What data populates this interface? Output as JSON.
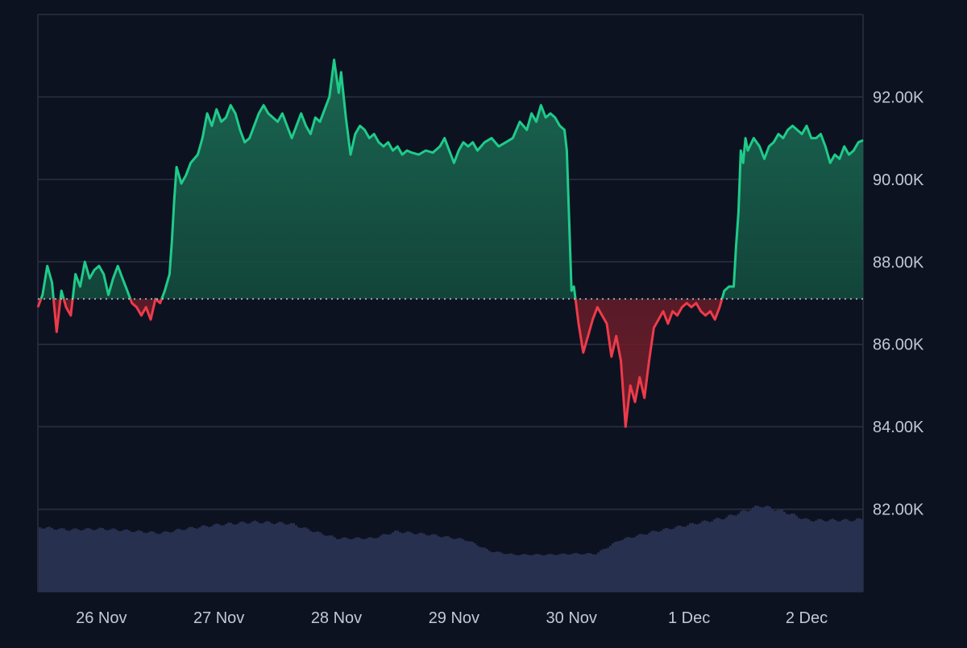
{
  "colors": {
    "background": "#0d1221",
    "grid": "#2b3142",
    "axis_text": "#c3c8d4",
    "up_line": "#1fcb8a",
    "down_line": "#ee3b4a",
    "up_fill": "#1b6b54",
    "down_fill": "#7a1f2c",
    "volume": "#28304f",
    "baseline": "#c9ced8"
  },
  "chart_data": {
    "type": "area",
    "baseline_value": 87100,
    "ylim": [
      80000,
      94000
    ],
    "y_ticks": [
      {
        "value": 82000,
        "label": "82.00K"
      },
      {
        "value": 84000,
        "label": "84.00K"
      },
      {
        "value": 86000,
        "label": "86.00K"
      },
      {
        "value": 88000,
        "label": "88.00K"
      },
      {
        "value": 90000,
        "label": "90.00K"
      },
      {
        "value": 92000,
        "label": "92.00K"
      }
    ],
    "x_ticks": [
      {
        "day": 0,
        "label": "26 Nov"
      },
      {
        "day": 1,
        "label": "27 Nov"
      },
      {
        "day": 2,
        "label": "28 Nov"
      },
      {
        "day": 3,
        "label": "29 Nov"
      },
      {
        "day": 4,
        "label": "30 Nov"
      },
      {
        "day": 5,
        "label": "1 Dec"
      },
      {
        "day": 6,
        "label": "2 Dec"
      }
    ],
    "xlim": [
      -0.54,
      6.48
    ],
    "price": [
      [
        -0.54,
        86900
      ],
      [
        -0.5,
        87200
      ],
      [
        -0.46,
        87900
      ],
      [
        -0.42,
        87500
      ],
      [
        -0.38,
        86300
      ],
      [
        -0.34,
        87300
      ],
      [
        -0.3,
        86900
      ],
      [
        -0.26,
        86700
      ],
      [
        -0.22,
        87700
      ],
      [
        -0.18,
        87400
      ],
      [
        -0.14,
        88000
      ],
      [
        -0.1,
        87600
      ],
      [
        -0.06,
        87800
      ],
      [
        -0.02,
        87900
      ],
      [
        0.02,
        87700
      ],
      [
        0.06,
        87200
      ],
      [
        0.1,
        87600
      ],
      [
        0.14,
        87900
      ],
      [
        0.18,
        87600
      ],
      [
        0.22,
        87300
      ],
      [
        0.26,
        87000
      ],
      [
        0.3,
        86900
      ],
      [
        0.34,
        86700
      ],
      [
        0.38,
        86900
      ],
      [
        0.42,
        86600
      ],
      [
        0.46,
        87100
      ],
      [
        0.5,
        87000
      ],
      [
        0.54,
        87300
      ],
      [
        0.58,
        87700
      ],
      [
        0.6,
        88500
      ],
      [
        0.62,
        89500
      ],
      [
        0.64,
        90300
      ],
      [
        0.68,
        89900
      ],
      [
        0.72,
        90100
      ],
      [
        0.76,
        90400
      ],
      [
        0.82,
        90600
      ],
      [
        0.86,
        91000
      ],
      [
        0.9,
        91600
      ],
      [
        0.94,
        91300
      ],
      [
        0.98,
        91700
      ],
      [
        1.02,
        91400
      ],
      [
        1.06,
        91500
      ],
      [
        1.1,
        91800
      ],
      [
        1.14,
        91600
      ],
      [
        1.18,
        91200
      ],
      [
        1.22,
        90900
      ],
      [
        1.26,
        91000
      ],
      [
        1.3,
        91300
      ],
      [
        1.34,
        91600
      ],
      [
        1.38,
        91800
      ],
      [
        1.42,
        91600
      ],
      [
        1.46,
        91500
      ],
      [
        1.5,
        91400
      ],
      [
        1.54,
        91600
      ],
      [
        1.58,
        91300
      ],
      [
        1.62,
        91000
      ],
      [
        1.66,
        91300
      ],
      [
        1.7,
        91600
      ],
      [
        1.74,
        91300
      ],
      [
        1.78,
        91100
      ],
      [
        1.82,
        91500
      ],
      [
        1.86,
        91400
      ],
      [
        1.9,
        91700
      ],
      [
        1.94,
        92000
      ],
      [
        1.98,
        92900
      ],
      [
        2.02,
        92100
      ],
      [
        2.04,
        92600
      ],
      [
        2.08,
        91500
      ],
      [
        2.12,
        90600
      ],
      [
        2.16,
        91100
      ],
      [
        2.2,
        91300
      ],
      [
        2.24,
        91200
      ],
      [
        2.28,
        91000
      ],
      [
        2.32,
        91100
      ],
      [
        2.36,
        90900
      ],
      [
        2.4,
        90800
      ],
      [
        2.44,
        90900
      ],
      [
        2.48,
        90700
      ],
      [
        2.52,
        90800
      ],
      [
        2.56,
        90600
      ],
      [
        2.6,
        90700
      ],
      [
        2.64,
        90650
      ],
      [
        2.7,
        90600
      ],
      [
        2.76,
        90700
      ],
      [
        2.82,
        90650
      ],
      [
        2.88,
        90800
      ],
      [
        2.92,
        91000
      ],
      [
        2.96,
        90700
      ],
      [
        3.0,
        90400
      ],
      [
        3.04,
        90700
      ],
      [
        3.08,
        90900
      ],
      [
        3.12,
        90800
      ],
      [
        3.16,
        90900
      ],
      [
        3.2,
        90700
      ],
      [
        3.26,
        90900
      ],
      [
        3.32,
        91000
      ],
      [
        3.38,
        90800
      ],
      [
        3.44,
        90900
      ],
      [
        3.5,
        91000
      ],
      [
        3.56,
        91400
      ],
      [
        3.62,
        91200
      ],
      [
        3.66,
        91600
      ],
      [
        3.7,
        91400
      ],
      [
        3.74,
        91800
      ],
      [
        3.78,
        91500
      ],
      [
        3.82,
        91600
      ],
      [
        3.86,
        91500
      ],
      [
        3.9,
        91300
      ],
      [
        3.94,
        91200
      ],
      [
        3.96,
        90700
      ],
      [
        3.98,
        89000
      ],
      [
        4.0,
        87300
      ],
      [
        4.02,
        87400
      ],
      [
        4.06,
        86500
      ],
      [
        4.1,
        85800
      ],
      [
        4.14,
        86200
      ],
      [
        4.18,
        86600
      ],
      [
        4.22,
        86900
      ],
      [
        4.26,
        86700
      ],
      [
        4.3,
        86500
      ],
      [
        4.34,
        85700
      ],
      [
        4.38,
        86200
      ],
      [
        4.42,
        85600
      ],
      [
        4.46,
        84000
      ],
      [
        4.5,
        85000
      ],
      [
        4.54,
        84600
      ],
      [
        4.58,
        85200
      ],
      [
        4.62,
        84700
      ],
      [
        4.66,
        85600
      ],
      [
        4.7,
        86400
      ],
      [
        4.74,
        86600
      ],
      [
        4.78,
        86800
      ],
      [
        4.82,
        86500
      ],
      [
        4.86,
        86800
      ],
      [
        4.9,
        86700
      ],
      [
        4.94,
        86900
      ],
      [
        4.98,
        87000
      ],
      [
        5.02,
        86900
      ],
      [
        5.06,
        87000
      ],
      [
        5.1,
        86800
      ],
      [
        5.14,
        86700
      ],
      [
        5.18,
        86800
      ],
      [
        5.22,
        86600
      ],
      [
        5.26,
        86900
      ],
      [
        5.3,
        87300
      ],
      [
        5.34,
        87400
      ],
      [
        5.38,
        87400
      ],
      [
        5.4,
        88400
      ],
      [
        5.42,
        89200
      ],
      [
        5.44,
        90700
      ],
      [
        5.46,
        90400
      ],
      [
        5.48,
        91000
      ],
      [
        5.5,
        90700
      ],
      [
        5.55,
        91000
      ],
      [
        5.6,
        90800
      ],
      [
        5.64,
        90500
      ],
      [
        5.68,
        90800
      ],
      [
        5.72,
        90900
      ],
      [
        5.76,
        91100
      ],
      [
        5.8,
        91000
      ],
      [
        5.84,
        91200
      ],
      [
        5.88,
        91300
      ],
      [
        5.92,
        91200
      ],
      [
        5.96,
        91100
      ],
      [
        6.0,
        91300
      ],
      [
        6.04,
        91000
      ],
      [
        6.08,
        91000
      ],
      [
        6.12,
        91100
      ],
      [
        6.16,
        90800
      ],
      [
        6.2,
        90400
      ],
      [
        6.24,
        90600
      ],
      [
        6.28,
        90500
      ],
      [
        6.32,
        90800
      ],
      [
        6.36,
        90600
      ],
      [
        6.4,
        90700
      ],
      [
        6.44,
        90900
      ],
      [
        6.48,
        90950
      ]
    ],
    "volume": [
      [
        -0.54,
        0.75
      ],
      [
        -0.3,
        0.72
      ],
      [
        0.0,
        0.73
      ],
      [
        0.3,
        0.7
      ],
      [
        0.5,
        0.68
      ],
      [
        0.7,
        0.73
      ],
      [
        1.0,
        0.78
      ],
      [
        1.3,
        0.81
      ],
      [
        1.6,
        0.79
      ],
      [
        1.8,
        0.7
      ],
      [
        2.0,
        0.62
      ],
      [
        2.3,
        0.62
      ],
      [
        2.5,
        0.7
      ],
      [
        2.8,
        0.66
      ],
      [
        3.1,
        0.6
      ],
      [
        3.3,
        0.47
      ],
      [
        3.5,
        0.43
      ],
      [
        3.8,
        0.43
      ],
      [
        4.0,
        0.44
      ],
      [
        4.2,
        0.44
      ],
      [
        4.4,
        0.6
      ],
      [
        4.7,
        0.7
      ],
      [
        5.0,
        0.78
      ],
      [
        5.3,
        0.86
      ],
      [
        5.6,
        1.0
      ],
      [
        5.8,
        0.93
      ],
      [
        6.0,
        0.83
      ],
      [
        6.2,
        0.83
      ],
      [
        6.4,
        0.83
      ],
      [
        6.48,
        0.85
      ]
    ]
  }
}
